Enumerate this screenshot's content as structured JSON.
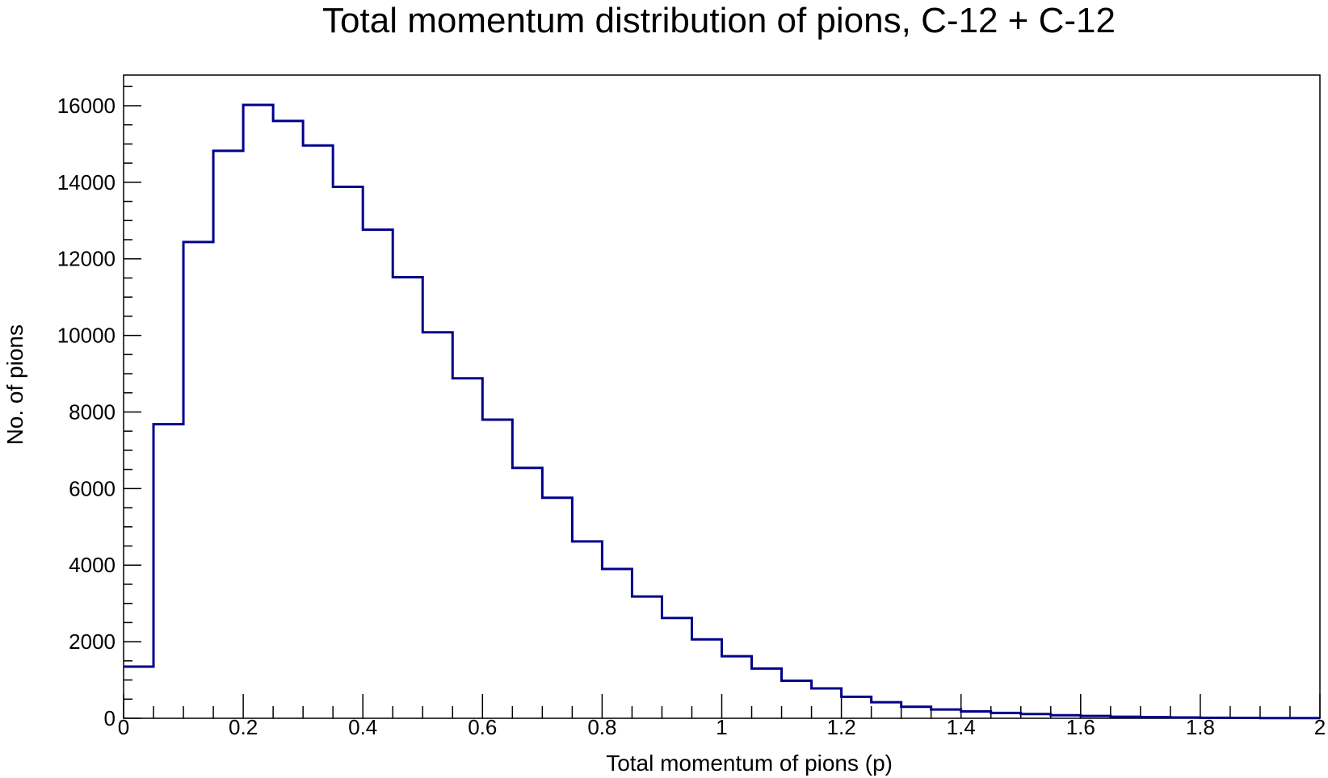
{
  "chart_data": {
    "type": "histogram",
    "title": "Total momentum distribution of pions, C-12 + C-12",
    "xlabel": "Total momentum of pions (p)",
    "ylabel": "No. of pions",
    "xlim": [
      0,
      2
    ],
    "ylim": [
      0,
      16800
    ],
    "bin_width": 0.05,
    "bin_edges_start": 0,
    "x_ticks": [
      "0",
      "0.2",
      "0.4",
      "0.6",
      "0.8",
      "1",
      "1.2",
      "1.4",
      "1.6",
      "1.8",
      "2"
    ],
    "x_tick_values": [
      0,
      0.2,
      0.4,
      0.6,
      0.8,
      1.0,
      1.2,
      1.4,
      1.6,
      1.8,
      2.0
    ],
    "y_ticks": [
      "0",
      "2000",
      "4000",
      "6000",
      "8000",
      "10000",
      "12000",
      "14000",
      "16000"
    ],
    "y_tick_values": [
      0,
      2000,
      4000,
      6000,
      8000,
      10000,
      12000,
      14000,
      16000
    ],
    "grid": false,
    "legend": "none",
    "line_color": "#00008b",
    "values": [
      1350,
      7680,
      12440,
      14820,
      16020,
      15600,
      14960,
      13880,
      12760,
      11520,
      10080,
      8880,
      7800,
      6540,
      5760,
      4620,
      3900,
      3180,
      2620,
      2060,
      1620,
      1300,
      980,
      780,
      560,
      420,
      300,
      230,
      180,
      140,
      110,
      80,
      60,
      40,
      30,
      20,
      14,
      10,
      6,
      4
    ]
  }
}
